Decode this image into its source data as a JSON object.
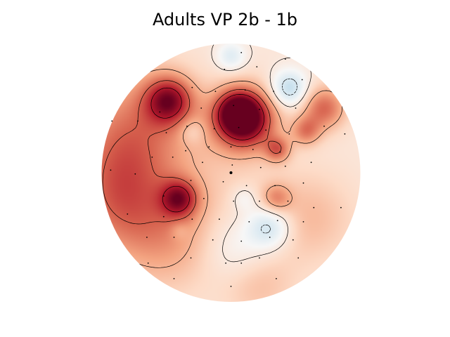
{
  "chart_data": {
    "type": "heatmap",
    "title": "Adults VP 2b - 1b",
    "colormap": "RdBu_r",
    "value_range": [
      -1,
      1
    ],
    "contour_levels": [
      -0.4,
      -0.15,
      0.1,
      0.35,
      0.6,
      0.8
    ],
    "sensors": [
      [
        0.08,
        0.93
      ],
      [
        0.42,
        0.88
      ],
      [
        -0.05,
        0.8
      ],
      [
        0.2,
        0.82
      ],
      [
        0.55,
        0.72
      ],
      [
        -0.3,
        0.66
      ],
      [
        -0.12,
        0.63
      ],
      [
        0.11,
        0.64
      ],
      [
        0.33,
        0.63
      ],
      [
        -0.55,
        0.47
      ],
      [
        -0.23,
        0.5
      ],
      [
        0.02,
        0.52
      ],
      [
        0.22,
        0.49
      ],
      [
        0.5,
        0.5
      ],
      [
        -0.92,
        0.4
      ],
      [
        -0.72,
        0.4
      ],
      [
        -0.5,
        0.31
      ],
      [
        -0.34,
        0.36
      ],
      [
        -0.13,
        0.34
      ],
      [
        0.06,
        0.35
      ],
      [
        0.27,
        0.33
      ],
      [
        0.45,
        0.3
      ],
      [
        0.72,
        0.36
      ],
      [
        0.88,
        0.3
      ],
      [
        -0.35,
        0.17
      ],
      [
        -0.17,
        0.2
      ],
      [
        0.0,
        0.2
      ],
      [
        0.17,
        0.18
      ],
      [
        0.38,
        0.16
      ],
      [
        -0.61,
        0.12
      ],
      [
        -0.45,
        0.12
      ],
      [
        -0.22,
        0.08
      ],
      [
        0.01,
        0.06
      ],
      [
        0.23,
        0.04
      ],
      [
        0.42,
        0.05
      ],
      [
        0.62,
        0.08
      ],
      [
        -0.93,
        0.02
      ],
      [
        -0.74,
        -0.01
      ],
      [
        -0.31,
        -0.06
      ],
      [
        -0.06,
        -0.07
      ],
      [
        0.12,
        -0.1
      ],
      [
        0.34,
        -0.1
      ],
      [
        0.56,
        -0.08
      ],
      [
        -0.52,
        -0.18
      ],
      [
        -0.21,
        -0.2
      ],
      [
        0.02,
        -0.22
      ],
      [
        0.22,
        -0.22
      ],
      [
        0.44,
        -0.22
      ],
      [
        0.64,
        -0.27
      ],
      [
        0.85,
        -0.27
      ],
      [
        -0.8,
        -0.32
      ],
      [
        -0.52,
        -0.34
      ],
      [
        -0.3,
        -0.36
      ],
      [
        -0.09,
        -0.36
      ],
      [
        0.14,
        -0.38
      ],
      [
        0.36,
        -0.37
      ],
      [
        0.56,
        -0.38
      ],
      [
        -0.65,
        -0.5
      ],
      [
        -0.44,
        -0.5
      ],
      [
        -0.14,
        -0.52
      ],
      [
        0.08,
        -0.53
      ],
      [
        0.3,
        -0.5
      ],
      [
        0.48,
        -0.52
      ],
      [
        -0.64,
        -0.7
      ],
      [
        -0.31,
        -0.66
      ],
      [
        -0.04,
        -0.7
      ],
      [
        0.22,
        -0.66
      ],
      [
        0.52,
        -0.66
      ],
      [
        -0.44,
        -0.82
      ],
      [
        0.0,
        -0.88
      ],
      [
        0.35,
        -0.82
      ],
      [
        0.08,
        -0.7
      ]
    ],
    "reference_sensor": [
      0.0,
      0.0
    ]
  }
}
